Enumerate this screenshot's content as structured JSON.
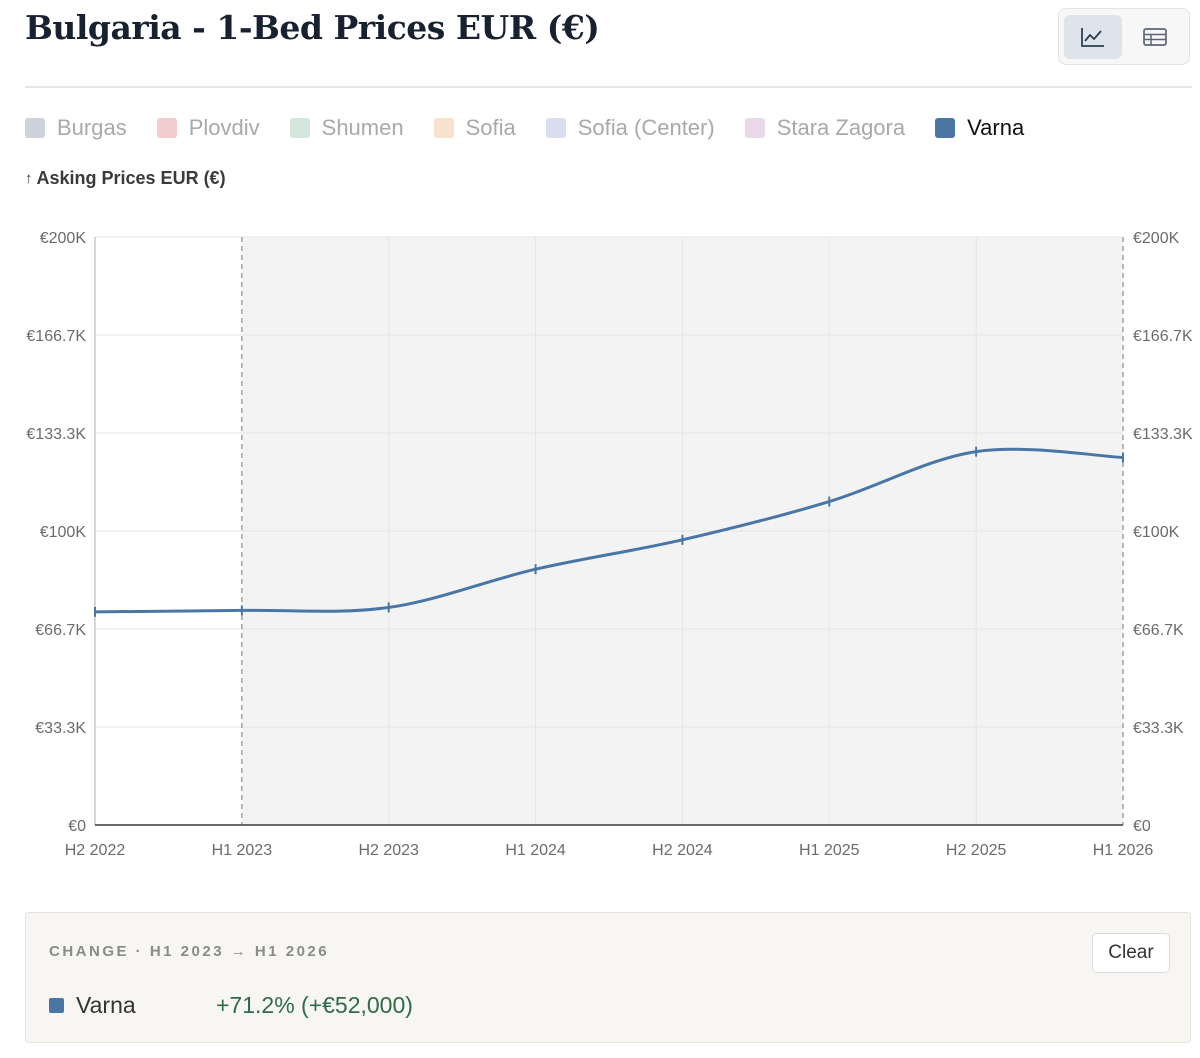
{
  "title": "Bulgaria - 1-Bed Prices EUR (€)",
  "view_toggle": {
    "options": [
      {
        "icon": "line-chart-icon",
        "active": true
      },
      {
        "icon": "table-icon",
        "active": false
      }
    ]
  },
  "legend": [
    {
      "label": "Burgas",
      "color": "#7d89a6",
      "active": false
    },
    {
      "label": "Plovdiv",
      "color": "#d97b7b",
      "active": false
    },
    {
      "label": "Shumen",
      "color": "#8fbfa6",
      "active": false
    },
    {
      "label": "Sofia",
      "color": "#e8b47c",
      "active": false
    },
    {
      "label": "Sofia (Center)",
      "color": "#9aa7e0",
      "active": false
    },
    {
      "label": "Stara Zagora",
      "color": "#c79ac9",
      "active": false
    },
    {
      "label": "Varna",
      "color": "#4a76a6",
      "active": true
    }
  ],
  "y_axis_title": "Asking Prices EUR (€)",
  "chart_data": {
    "type": "line",
    "x": [
      "H2 2022",
      "H1 2023",
      "H2 2023",
      "H1 2024",
      "H2 2024",
      "H1 2025",
      "H2 2025",
      "H1 2026"
    ],
    "series": [
      {
        "name": "Varna",
        "color": "#4a76a6",
        "values": [
          72500,
          73000,
          74000,
          87000,
          97000,
          110000,
          127000,
          125000
        ]
      }
    ],
    "ylabel": "Asking Prices EUR (€)",
    "ylim": [
      0,
      200000
    ],
    "y_ticks": [
      "€0",
      "€33.3K",
      "€66.7K",
      "€100K",
      "€133.3K",
      "€166.7K",
      "€200K"
    ],
    "selection": {
      "from": "H1 2023",
      "to": "H1 2026"
    },
    "grid": true
  },
  "change_panel": {
    "heading": "CHANGE · H1 2023 → H1 2026",
    "clear_label": "Clear",
    "rows": [
      {
        "series": "Varna",
        "color": "#4a76a6",
        "value": "+71.2% (+€52,000)"
      }
    ]
  }
}
